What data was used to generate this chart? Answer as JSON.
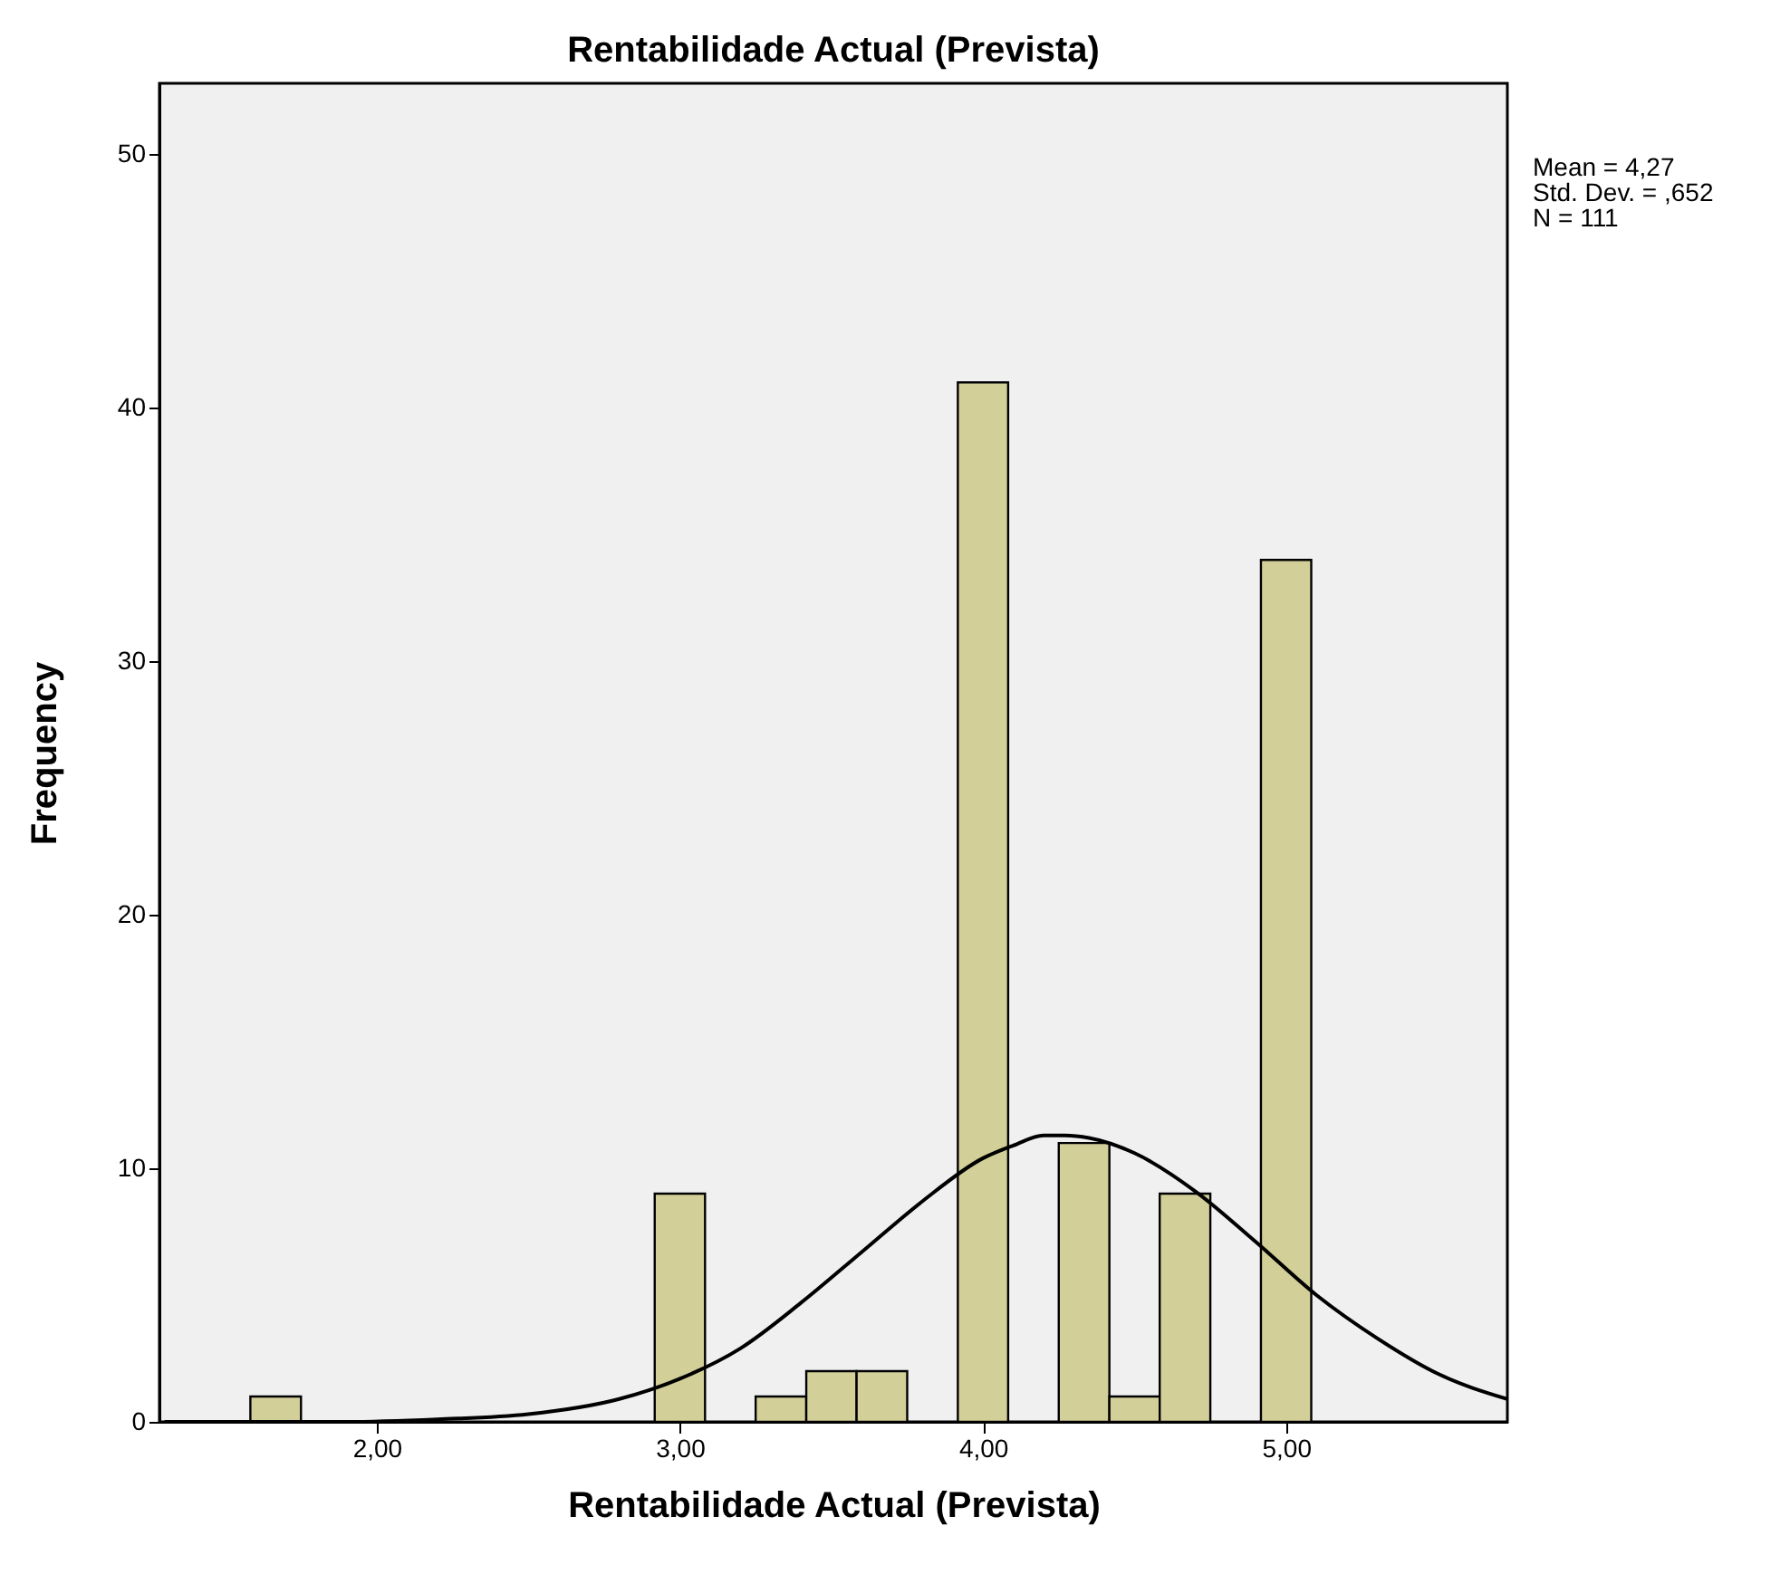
{
  "chart_data": {
    "type": "histogram",
    "title": "Rentabilidade Actual (Prevista)",
    "xlabel": "Rentabilidade Actual (Prevista)",
    "ylabel": "Frequency",
    "bins": [
      1.583,
      1.75,
      1.917,
      2.083,
      2.25,
      2.417,
      2.583,
      2.75,
      2.917,
      3.083,
      3.25,
      3.417,
      3.583,
      3.75,
      3.917,
      4.083,
      4.25,
      4.417,
      4.583,
      4.75,
      4.917,
      5.083
    ],
    "values": [
      1,
      0,
      0,
      0,
      0,
      0,
      0,
      0,
      9,
      0,
      1,
      2,
      2,
      0,
      41,
      0,
      11,
      1,
      9,
      0,
      34
    ],
    "color": "#d3cf98",
    "series": [
      {
        "type": "line",
        "color": "#000000",
        "x": [
          1.3,
          1.6,
          1.9,
          2.2,
          2.5,
          2.8,
          3.0,
          3.2,
          3.4,
          3.6,
          3.8,
          4.0,
          4.1,
          4.2,
          4.27,
          4.35,
          4.5,
          4.7,
          4.9,
          5.1,
          5.3,
          5.5,
          5.73
        ],
        "values": [
          0.0,
          0.0,
          0.0,
          0.1,
          0.3,
          0.9,
          1.7,
          2.9,
          4.7,
          6.7,
          8.7,
          10.4,
          10.9,
          11.3,
          11.3,
          11.2,
          10.6,
          9.1,
          7.1,
          5.0,
          3.3,
          1.9,
          0.9
        ]
      }
    ],
    "xlim": [
      1.283,
      5.73
    ],
    "xticks": [
      {
        "value": 2,
        "label": "2,00"
      },
      {
        "value": 3,
        "label": "3,00"
      },
      {
        "value": 4,
        "label": "4,00"
      },
      {
        "value": 5,
        "label": "5,00"
      }
    ],
    "ylim": [
      0,
      52.8
    ],
    "yticks": [
      0,
      10,
      20,
      30,
      40,
      50
    ],
    "grid": false,
    "annotations": [
      "Mean = 4,27",
      "Std. Dev. = ,652",
      "N = 111"
    ]
  }
}
